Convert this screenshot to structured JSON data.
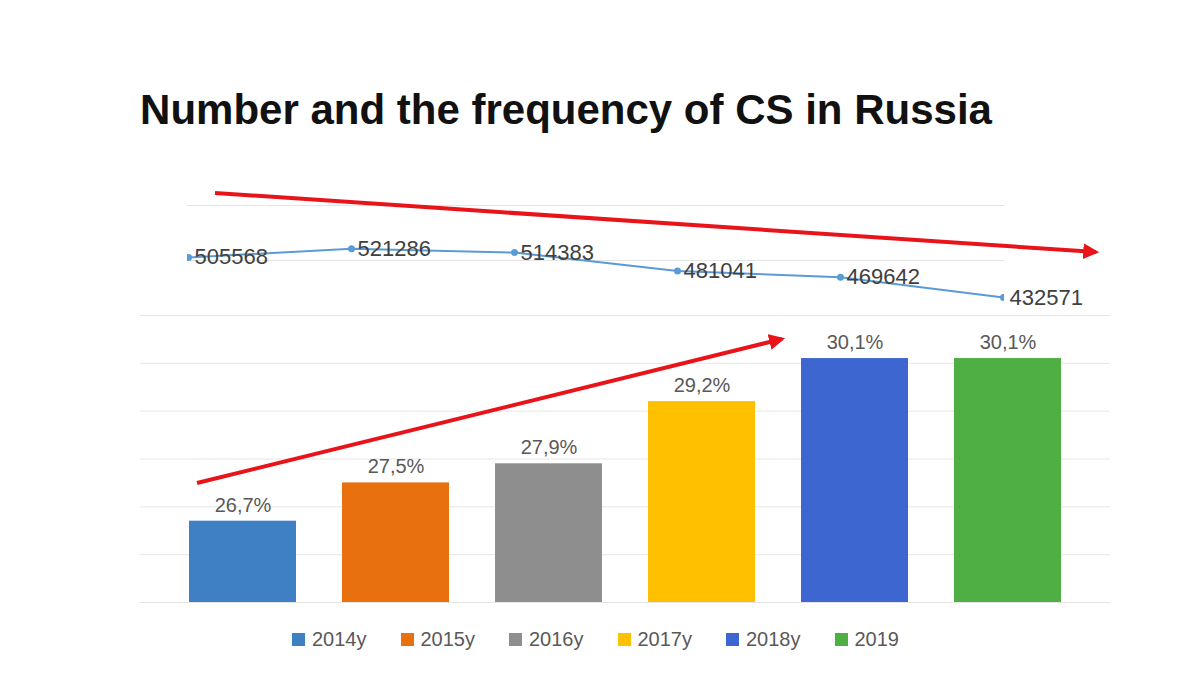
{
  "chart_data": [
    {
      "type": "line",
      "title": "Number and the frequency of CS in Russia",
      "categories": [
        "2014y",
        "2015y",
        "2016y",
        "2017y",
        "2018y",
        "2019"
      ],
      "values": [
        505568,
        521286,
        514383,
        481041,
        469642,
        432571
      ],
      "color": "#5b9bd5",
      "marker": "circle",
      "data_labels": true,
      "tick_labels": false,
      "ylim": [
        400000,
        600000
      ],
      "yticks": [
        400000,
        500000,
        600000
      ],
      "grid": true
    },
    {
      "type": "bar",
      "categories": [
        "2014y",
        "2015y",
        "2016y",
        "2017y",
        "2018y",
        "2019"
      ],
      "values": [
        26.7,
        27.5,
        27.9,
        29.2,
        30.1,
        30.1
      ],
      "value_labels": [
        "26,7%",
        "27,5%",
        "27,9%",
        "29,2%",
        "30,1%",
        "30,1%"
      ],
      "colors": [
        "#3f7fc4",
        "#e8700f",
        "#8e8e8e",
        "#ffc000",
        "#3d66d0",
        "#4fae44"
      ],
      "data_labels": true,
      "tick_labels": false,
      "legend": "bottom",
      "ylim": [
        25,
        31
      ],
      "yticks": [
        25,
        26,
        27,
        28,
        29,
        30,
        31
      ],
      "grid": true
    }
  ]
}
